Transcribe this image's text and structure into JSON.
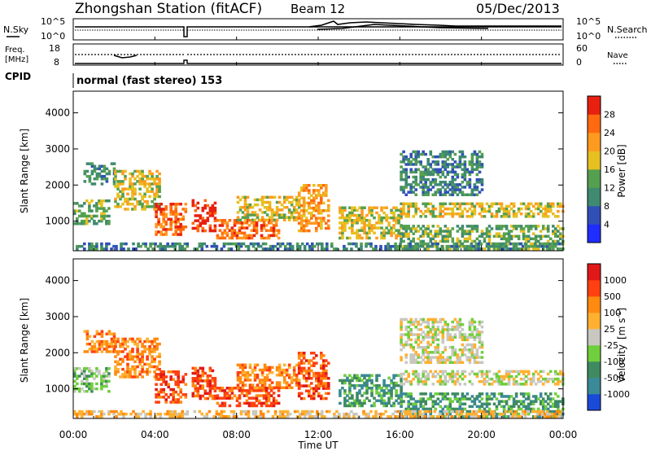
{
  "header": {
    "station": "Zhongshan Station (fitACF)",
    "beam": "Beam 12",
    "date": "05/Dec/2013"
  },
  "top_panels": {
    "nsky_label": "N.Sky",
    "nsky_ticks": [
      "10^5",
      "10^0"
    ],
    "nsearch_label": "N.Search",
    "nsearch_ticks": [
      "10^5",
      "10^0"
    ],
    "freq_label_1": "Freq.",
    "freq_label_2": "[MHz]",
    "freq_ticks": [
      "18",
      "8"
    ],
    "nave_label": "Nave",
    "nave_ticks": [
      "60",
      "0"
    ],
    "cpid_label": "CPID",
    "cpid_text": "normal (fast stereo) 153",
    "colors": {
      "line": "#000000"
    }
  },
  "chart_data": [
    {
      "type": "heatmap",
      "name_axis": "Slant Range [km]",
      "ylabel": "Slant Range [km]",
      "yticks": [
        "1000",
        "2000",
        "3000",
        "4000"
      ],
      "ylim": [
        180,
        4600
      ],
      "xlim": [
        0,
        24
      ],
      "xticks": [
        "00:00",
        "04:00",
        "08:00",
        "12:00",
        "16:00",
        "20:00",
        "00:00"
      ],
      "colorbar": {
        "label": "Power [dB]",
        "ticks": [
          "4",
          "8",
          "12",
          "16",
          "20",
          "24",
          "28"
        ],
        "colors": [
          "#1f2dff",
          "#3050b8",
          "#3f8a70",
          "#55a050",
          "#e6c020",
          "#ff9a20",
          "#ff6a10",
          "#e82010"
        ]
      },
      "regions": [
        {
          "t0": 0.0,
          "t1": 1.8,
          "r0": 900,
          "r1": 1600,
          "level": 3
        },
        {
          "t0": 0.5,
          "t1": 2.0,
          "r0": 2000,
          "r1": 2600,
          "level": 2
        },
        {
          "t0": 2.0,
          "t1": 4.2,
          "r0": 1300,
          "r1": 2400,
          "level": 4
        },
        {
          "t0": 4.0,
          "t1": 5.6,
          "r0": 600,
          "r1": 1500,
          "level": 6
        },
        {
          "t0": 5.8,
          "t1": 7.0,
          "r0": 700,
          "r1": 1600,
          "level": 7
        },
        {
          "t0": 7.0,
          "t1": 10.0,
          "r0": 500,
          "r1": 1000,
          "level": 6
        },
        {
          "t0": 8.0,
          "t1": 11.0,
          "r0": 1000,
          "r1": 1700,
          "level": 4
        },
        {
          "t0": 11.0,
          "t1": 12.5,
          "r0": 700,
          "r1": 2000,
          "level": 5
        },
        {
          "t0": 13.0,
          "t1": 16.0,
          "r0": 500,
          "r1": 1400,
          "level": 4
        },
        {
          "t0": 16.0,
          "t1": 24.0,
          "r0": 1100,
          "r1": 1500,
          "level": 4
        },
        {
          "t0": 16.0,
          "t1": 20.0,
          "r0": 1700,
          "r1": 2900,
          "level": 2
        },
        {
          "t0": 16.0,
          "t1": 24.0,
          "r0": 200,
          "r1": 900,
          "level": 3
        },
        {
          "t0": 0.0,
          "t1": 24.0,
          "r0": 200,
          "r1": 400,
          "level": 2
        }
      ]
    },
    {
      "type": "heatmap",
      "ylabel": "Slant Range [km]",
      "yticks": [
        "1000",
        "2000",
        "3000",
        "4000"
      ],
      "ylim": [
        180,
        4600
      ],
      "xlim": [
        0,
        24
      ],
      "xticks": [
        "00:00",
        "04:00",
        "08:00",
        "12:00",
        "16:00",
        "20:00",
        "00:00"
      ],
      "xlabel": "Time UT",
      "colorbar": {
        "label": "Velocity",
        "label_units": "[m s",
        "label_sup": "-1",
        "label_close": "]",
        "ticks": [
          "1000",
          "500",
          "100",
          "25",
          "-25",
          "-100",
          "-500",
          "-1000"
        ],
        "colors": [
          "#1a4ad8",
          "#3a8a98",
          "#3f8a60",
          "#6fcf3c",
          "#c8c8c0",
          "#ffb030",
          "#ff8a10",
          "#ff4010",
          "#e01818"
        ]
      },
      "regions": [
        {
          "t0": 0.0,
          "t1": 1.8,
          "r0": 900,
          "r1": 1600,
          "level": 3
        },
        {
          "t0": 0.5,
          "t1": 2.0,
          "r0": 2000,
          "r1": 2600,
          "level": 6
        },
        {
          "t0": 2.0,
          "t1": 4.2,
          "r0": 1300,
          "r1": 2400,
          "level": 6
        },
        {
          "t0": 4.0,
          "t1": 5.6,
          "r0": 600,
          "r1": 1500,
          "level": 7
        },
        {
          "t0": 5.8,
          "t1": 7.0,
          "r0": 700,
          "r1": 1600,
          "level": 7
        },
        {
          "t0": 7.0,
          "t1": 10.0,
          "r0": 500,
          "r1": 1000,
          "level": 7
        },
        {
          "t0": 8.0,
          "t1": 11.0,
          "r0": 1000,
          "r1": 1700,
          "level": 6
        },
        {
          "t0": 11.0,
          "t1": 12.5,
          "r0": 700,
          "r1": 2000,
          "level": 7
        },
        {
          "t0": 13.0,
          "t1": 16.0,
          "r0": 500,
          "r1": 1400,
          "level": 2
        },
        {
          "t0": 16.0,
          "t1": 24.0,
          "r0": 1100,
          "r1": 1500,
          "level": 4
        },
        {
          "t0": 16.0,
          "t1": 20.0,
          "r0": 1700,
          "r1": 2900,
          "level": 4
        },
        {
          "t0": 16.0,
          "t1": 24.0,
          "r0": 200,
          "r1": 900,
          "level": 2
        },
        {
          "t0": 0.0,
          "t1": 24.0,
          "r0": 200,
          "r1": 400,
          "level": 5
        }
      ]
    }
  ]
}
